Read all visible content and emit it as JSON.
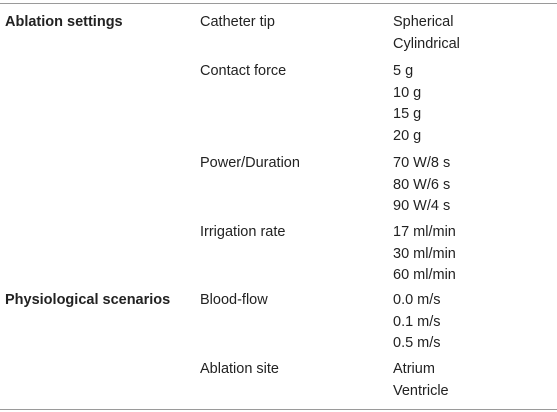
{
  "table": {
    "groups": [
      {
        "title": "Ablation settings",
        "params": [
          {
            "name": "Catheter tip",
            "values": [
              "Spherical",
              "Cylindrical"
            ]
          },
          {
            "name": "Contact force",
            "values": [
              "5 g",
              "10 g",
              "15 g",
              "20 g"
            ]
          },
          {
            "name": "Power/Duration",
            "values": [
              "70 W/8 s",
              "80 W/6 s",
              "90 W/4 s"
            ]
          },
          {
            "name": "Irrigation rate",
            "values": [
              "17 ml/min",
              "30 ml/min",
              "60 ml/min"
            ]
          }
        ]
      },
      {
        "title": "Physiological scenarios",
        "params": [
          {
            "name": "Blood-flow",
            "values": [
              "0.0 m/s",
              "0.1 m/s",
              "0.5 m/s"
            ]
          },
          {
            "name": "Ablation site",
            "values": [
              "Atrium",
              "Ventricle"
            ]
          }
        ]
      }
    ]
  }
}
